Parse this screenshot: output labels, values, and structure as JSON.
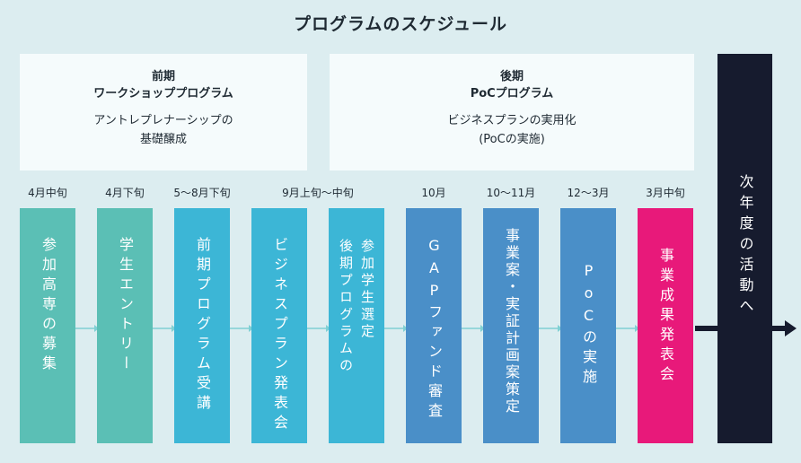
{
  "title": "プログラムのスケジュール",
  "phases": [
    {
      "line1": "前期",
      "line2": "ワークショッププログラム",
      "desc1": "アントレプレナーシップの",
      "desc2": "基礎醸成"
    },
    {
      "line1": "後期",
      "line2": "PoCプログラム",
      "desc1": "ビジネスプランの実用化",
      "desc2": "(PoCの実施)"
    }
  ],
  "steps": [
    {
      "time": "4月中旬",
      "label": "参加高専の募集",
      "color": "#5bbfb5"
    },
    {
      "time": "4月下旬",
      "label": "学生エントリー",
      "color": "#5bbfb5"
    },
    {
      "time": "5〜8月下旬",
      "label": "前期プログラム受講",
      "color": "#3cb6d6"
    },
    {
      "time": "9月上旬〜中旬",
      "label": "ビジネスプラン発表会",
      "color": "#3cb6d6"
    },
    {
      "time": "",
      "label_col1": "後期プログラムの",
      "label_col2": "参加学生選定",
      "color": "#3cb6d6"
    },
    {
      "time": "10月",
      "label": "GAPファンド審査",
      "color": "#4a8fc8"
    },
    {
      "time": "10〜11月",
      "label": "事業案・実証計画案策定",
      "color": "#4a8fc8"
    },
    {
      "time": "12〜3月",
      "label": "PoCの実施",
      "color": "#4a8fc8"
    },
    {
      "time": "3月中旬",
      "label": "事業成果発表会",
      "color": "#e8197a"
    }
  ],
  "next_year": "次年度の活動へ"
}
